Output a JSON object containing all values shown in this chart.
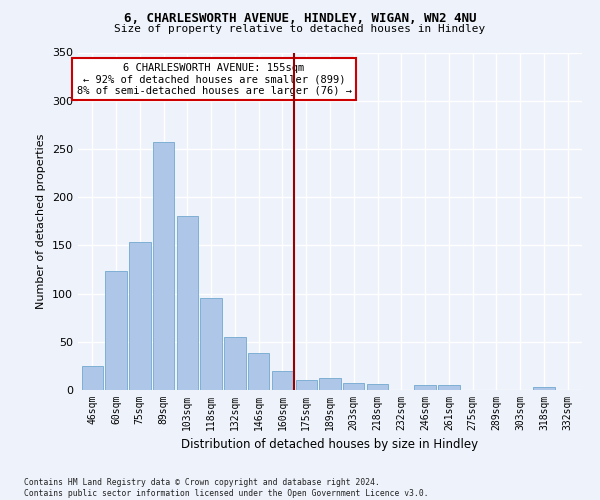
{
  "title1": "6, CHARLESWORTH AVENUE, HINDLEY, WIGAN, WN2 4NU",
  "title2": "Size of property relative to detached houses in Hindley",
  "xlabel": "Distribution of detached houses by size in Hindley",
  "ylabel": "Number of detached properties",
  "categories": [
    "46sqm",
    "60sqm",
    "75sqm",
    "89sqm",
    "103sqm",
    "118sqm",
    "132sqm",
    "146sqm",
    "160sqm",
    "175sqm",
    "189sqm",
    "203sqm",
    "218sqm",
    "232sqm",
    "246sqm",
    "261sqm",
    "275sqm",
    "289sqm",
    "303sqm",
    "318sqm",
    "332sqm"
  ],
  "values": [
    25,
    123,
    153,
    257,
    180,
    95,
    55,
    38,
    20,
    10,
    12,
    7,
    6,
    0,
    5,
    5,
    0,
    0,
    0,
    3,
    0
  ],
  "bar_color": "#aec6e8",
  "bar_edge_color": "#7eafd4",
  "vline_x": 8.5,
  "vline_color": "#990000",
  "annotation_text": "6 CHARLESWORTH AVENUE: 155sqm\n← 92% of detached houses are smaller (899)\n8% of semi-detached houses are larger (76) →",
  "annotation_box_color": "#ffffff",
  "annotation_box_edge": "#cc0000",
  "ylim": [
    0,
    350
  ],
  "yticks": [
    0,
    50,
    100,
    150,
    200,
    250,
    300,
    350
  ],
  "footnote": "Contains HM Land Registry data © Crown copyright and database right 2024.\nContains public sector information licensed under the Open Government Licence v3.0.",
  "bg_color": "#eef2fa",
  "grid_color": "#ffffff"
}
